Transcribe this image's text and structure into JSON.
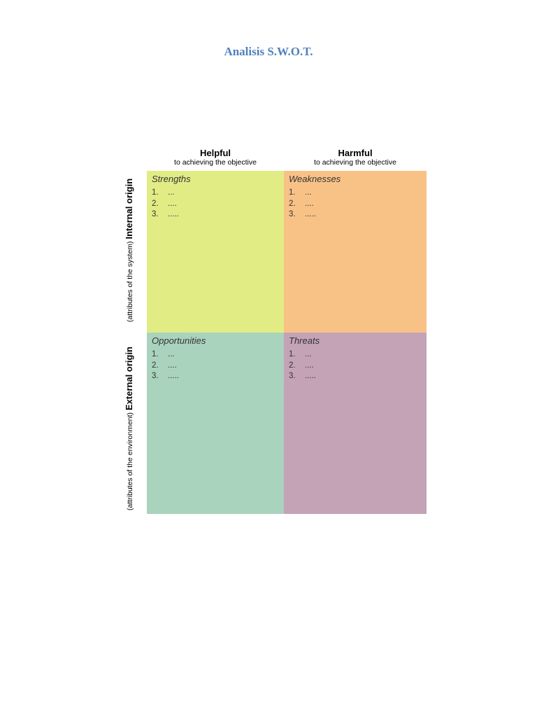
{
  "title": "Analisis S.W.O.T.",
  "columns": {
    "helpful": {
      "label": "Helpful",
      "sub": "to achieving the objective"
    },
    "harmful": {
      "label": "Harmful",
      "sub": "to achieving the objective"
    }
  },
  "rows": {
    "internal": {
      "label": "Internal origin",
      "sub": "(attributes of the system)"
    },
    "external": {
      "label": "External origin",
      "sub": "(attributes of the environment)"
    }
  },
  "quadrants": {
    "strengths": {
      "title": "Strengths",
      "color": "#e1ec85",
      "items": [
        {
          "num": "1.",
          "text": "..."
        },
        {
          "num": "2.",
          "text": "...."
        },
        {
          "num": "3.",
          "text": "....."
        }
      ]
    },
    "weaknesses": {
      "title": "Weaknesses",
      "color": "#f8c287",
      "items": [
        {
          "num": "1.",
          "text": "..."
        },
        {
          "num": "2.",
          "text": "...."
        },
        {
          "num": "3.",
          "text": "....."
        }
      ]
    },
    "opportunities": {
      "title": "Opportunities",
      "color": "#aad3bd",
      "items": [
        {
          "num": "1.",
          "text": "..."
        },
        {
          "num": "2.",
          "text": "...."
        },
        {
          "num": "3.",
          "text": "....."
        }
      ]
    },
    "threats": {
      "title": "Threats",
      "color": "#c4a3b6",
      "items": [
        {
          "num": "1.",
          "text": "..."
        },
        {
          "num": "2.",
          "text": "...."
        },
        {
          "num": "3.",
          "text": "....."
        }
      ]
    }
  },
  "title_color": "#4f81bd"
}
